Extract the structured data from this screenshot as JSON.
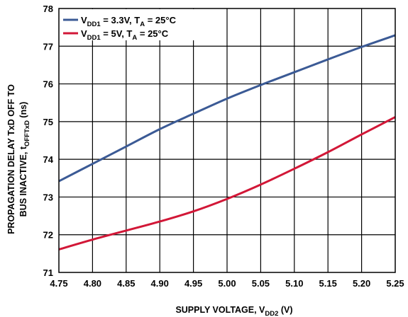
{
  "chart_data": {
    "type": "line",
    "xlabel": {
      "main": "SUPPLY VOLTAGE, V",
      "sub": "DD2",
      "suffix": " (V)"
    },
    "ylabel": {
      "line1": "PROPAGATION DELAY TxD OFF TO",
      "line2_main": "BUS INACTIVE, t",
      "line2_sub": "OFFTxD",
      "line2_suffix": " (ns)"
    },
    "xlim": [
      4.75,
      5.25
    ],
    "ylim": [
      71,
      78
    ],
    "x_ticks": [
      4.75,
      4.8,
      4.85,
      4.9,
      4.95,
      5.0,
      5.05,
      5.1,
      5.15,
      5.2,
      5.25
    ],
    "x_tick_labels": [
      "4.75",
      "4.80",
      "4.85",
      "4.90",
      "4.95",
      "5.00",
      "5.05",
      "5.10",
      "5.15",
      "5.20",
      "5.25"
    ],
    "y_ticks": [
      71,
      72,
      73,
      74,
      75,
      76,
      77,
      78
    ],
    "y_tick_labels": [
      "71",
      "72",
      "73",
      "74",
      "75",
      "76",
      "77",
      "78"
    ],
    "grid": true,
    "legend_position": "top-left",
    "x": [
      4.75,
      4.8,
      4.85,
      4.9,
      4.95,
      5.0,
      5.05,
      5.1,
      5.15,
      5.2,
      5.25
    ],
    "series": [
      {
        "legend": {
          "p1": "V",
          "s1": "DD1",
          "p2": " = 3.3V, T",
          "s2": "A",
          "p3": " = 25°C"
        },
        "color": "#3b5a95",
        "values": [
          73.42,
          73.88,
          74.34,
          74.8,
          75.21,
          75.61,
          75.97,
          76.31,
          76.65,
          76.98,
          77.29
        ]
      },
      {
        "legend": {
          "p1": "V",
          "s1": "DD1",
          "p2": " = 5V, T",
          "s2": "A",
          "p3": " = 25°C"
        },
        "color": "#d21737",
        "values": [
          71.61,
          71.87,
          72.11,
          72.35,
          72.62,
          72.95,
          73.33,
          73.75,
          74.19,
          74.66,
          75.12
        ]
      }
    ]
  }
}
